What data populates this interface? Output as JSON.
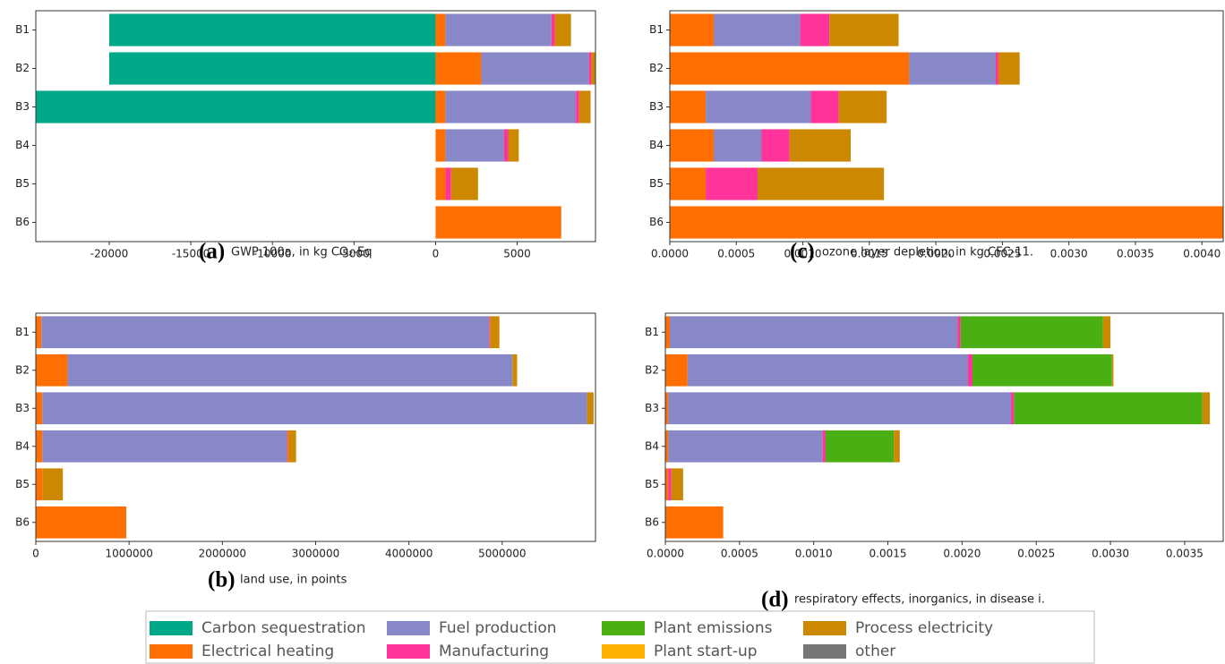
{
  "chart_data": [
    {
      "type": "bar",
      "orientation": "horizontal",
      "stacked": true,
      "panel_label": "(a)",
      "xlabel": "GWP 100a, in kg CO₂-Eq",
      "categories": [
        "B1",
        "B2",
        "B3",
        "B4",
        "B5",
        "B6"
      ],
      "xlim": [
        -24500,
        9800
      ],
      "xticks": [
        -20000,
        -15000,
        -10000,
        -5000,
        0,
        5000
      ],
      "series": [
        {
          "name": "Carbon sequestration",
          "color": "#00a887",
          "values": [
            -20000,
            -20000,
            -24500,
            0,
            0,
            0
          ]
        },
        {
          "name": "Electrical heating",
          "color": "#ff6e00",
          "values": [
            600,
            2800,
            600,
            600,
            600,
            7700
          ]
        },
        {
          "name": "Fuel production",
          "color": "#8888c8",
          "values": [
            6500,
            6600,
            8000,
            3600,
            0,
            0
          ]
        },
        {
          "name": "Manufacturing",
          "color": "#ff3399",
          "values": [
            200,
            150,
            200,
            250,
            350,
            0
          ]
        },
        {
          "name": "Plant emissions",
          "color": "#4aaf12",
          "values": [
            0,
            0,
            0,
            0,
            0,
            0
          ]
        },
        {
          "name": "Plant start-up",
          "color": "#ffb000",
          "values": [
            0,
            0,
            0,
            0,
            0,
            0
          ]
        },
        {
          "name": "Process electricity",
          "color": "#cc8800",
          "values": [
            1000,
            400,
            700,
            650,
            1650,
            0
          ]
        },
        {
          "name": "other",
          "color": "#777777",
          "values": [
            0,
            0,
            0,
            0,
            0,
            0
          ]
        }
      ]
    },
    {
      "type": "bar",
      "orientation": "horizontal",
      "stacked": true,
      "panel_label": "(c)",
      "xlabel": "ozone layer depletion, in kg CFC-11.",
      "categories": [
        "B1",
        "B2",
        "B3",
        "B4",
        "B5",
        "B6"
      ],
      "xlim": [
        0,
        0.00416
      ],
      "xticks": [
        {
          "value": 0,
          "label": "0.0000"
        },
        {
          "value": 0.0005,
          "label": "0.0005"
        },
        {
          "value": 0.001,
          "label": "0.0010"
        },
        {
          "value": 0.0015,
          "label": "0.0015"
        },
        {
          "value": 0.002,
          "label": "0.0020"
        },
        {
          "value": 0.0025,
          "label": "0.0025"
        },
        {
          "value": 0.003,
          "label": "0.0030"
        },
        {
          "value": 0.0035,
          "label": "0.0035"
        },
        {
          "value": 0.004,
          "label": "0.0040"
        }
      ],
      "series": [
        {
          "name": "Carbon sequestration",
          "color": "#00a887",
          "values": [
            0,
            0,
            0,
            0,
            0,
            0
          ]
        },
        {
          "name": "Electrical heating",
          "color": "#ff6e00",
          "values": [
            0.00033,
            0.0018,
            0.00027,
            0.00033,
            0.00027,
            0.00416
          ]
        },
        {
          "name": "Fuel production",
          "color": "#8888c8",
          "values": [
            0.00065,
            0.00065,
            0.00079,
            0.00036,
            0,
            0
          ]
        },
        {
          "name": "Manufacturing",
          "color": "#ff3399",
          "values": [
            0.00022,
            2e-05,
            0.00021,
            0.00021,
            0.00039,
            0
          ]
        },
        {
          "name": "Plant emissions",
          "color": "#4aaf12",
          "values": [
            0,
            0,
            0,
            0,
            0,
            0
          ]
        },
        {
          "name": "Plant start-up",
          "color": "#ffb000",
          "values": [
            0,
            0,
            0,
            0,
            0,
            0
          ]
        },
        {
          "name": "Process electricity",
          "color": "#cc8800",
          "values": [
            0.00052,
            0.00016,
            0.00036,
            0.00046,
            0.00095,
            0
          ]
        },
        {
          "name": "other",
          "color": "#777777",
          "values": [
            0,
            0,
            0,
            0,
            0,
            0
          ]
        }
      ]
    },
    {
      "type": "bar",
      "orientation": "horizontal",
      "stacked": true,
      "panel_label": "(b)",
      "xlabel": "land use, in points",
      "categories": [
        "B1",
        "B2",
        "B3",
        "B4",
        "B5",
        "B6"
      ],
      "xlim": [
        0,
        6000000
      ],
      "xticks": [
        0,
        1000000,
        2000000,
        3000000,
        4000000,
        5000000
      ],
      "series": [
        {
          "name": "Carbon sequestration",
          "color": "#00a887",
          "values": [
            0,
            0,
            0,
            0,
            0,
            0
          ]
        },
        {
          "name": "Electrical heating",
          "color": "#ff6e00",
          "values": [
            60000,
            340000,
            70000,
            70000,
            70000,
            970000
          ]
        },
        {
          "name": "Fuel production",
          "color": "#8888c8",
          "values": [
            4800000,
            4770000,
            5840000,
            2620000,
            0,
            0
          ]
        },
        {
          "name": "Manufacturing",
          "color": "#ff3399",
          "values": [
            10000,
            0,
            0,
            10000,
            0,
            0
          ]
        },
        {
          "name": "Plant emissions",
          "color": "#4aaf12",
          "values": [
            0,
            0,
            0,
            0,
            0,
            0
          ]
        },
        {
          "name": "Plant start-up",
          "color": "#ffb000",
          "values": [
            0,
            0,
            0,
            0,
            0,
            0
          ]
        },
        {
          "name": "Process electricity",
          "color": "#cc8800",
          "values": [
            100000,
            50000,
            70000,
            90000,
            220000,
            0
          ]
        },
        {
          "name": "other",
          "color": "#777777",
          "values": [
            0,
            0,
            0,
            0,
            0,
            0
          ]
        }
      ]
    },
    {
      "type": "bar",
      "orientation": "horizontal",
      "stacked": true,
      "panel_label": "(d)",
      "xlabel": "respiratory effects, inorganics, in disease i.",
      "categories": [
        "B1",
        "B2",
        "B3",
        "B4",
        "B5",
        "B6"
      ],
      "xlim": [
        0,
        0.00376
      ],
      "xticks": [
        {
          "value": 0,
          "label": "0.0000"
        },
        {
          "value": 0.0005,
          "label": "0.0005"
        },
        {
          "value": 0.001,
          "label": "0.0010"
        },
        {
          "value": 0.0015,
          "label": "0.0015"
        },
        {
          "value": 0.002,
          "label": "0.0020"
        },
        {
          "value": 0.0025,
          "label": "0.0025"
        },
        {
          "value": 0.003,
          "label": "0.0030"
        },
        {
          "value": 0.0035,
          "label": "0.0035"
        }
      ],
      "series": [
        {
          "name": "Carbon sequestration",
          "color": "#00a887",
          "values": [
            0,
            0,
            0,
            0,
            0,
            0
          ]
        },
        {
          "name": "Electrical heating",
          "color": "#ff6e00",
          "values": [
            3e-05,
            0.00015,
            2e-05,
            2e-05,
            2e-05,
            0.00039
          ]
        },
        {
          "name": "Fuel production",
          "color": "#8888c8",
          "values": [
            0.00194,
            0.00189,
            0.00231,
            0.00104,
            0,
            0
          ]
        },
        {
          "name": "Manufacturing",
          "color": "#ff3399",
          "values": [
            2e-05,
            3e-05,
            2e-05,
            2e-05,
            2e-05,
            0
          ]
        },
        {
          "name": "Plant emissions",
          "color": "#4aaf12",
          "values": [
            0.00096,
            0.00094,
            0.00127,
            0.00046,
            0,
            0
          ]
        },
        {
          "name": "Plant start-up",
          "color": "#ffb000",
          "values": [
            0,
            0,
            0,
            0,
            0,
            0
          ]
        },
        {
          "name": "Process electricity",
          "color": "#cc8800",
          "values": [
            5e-05,
            1e-05,
            5e-05,
            4e-05,
            8e-05,
            0
          ]
        },
        {
          "name": "other",
          "color": "#777777",
          "values": [
            0,
            0,
            0,
            0,
            0,
            0
          ]
        }
      ]
    }
  ]
}
